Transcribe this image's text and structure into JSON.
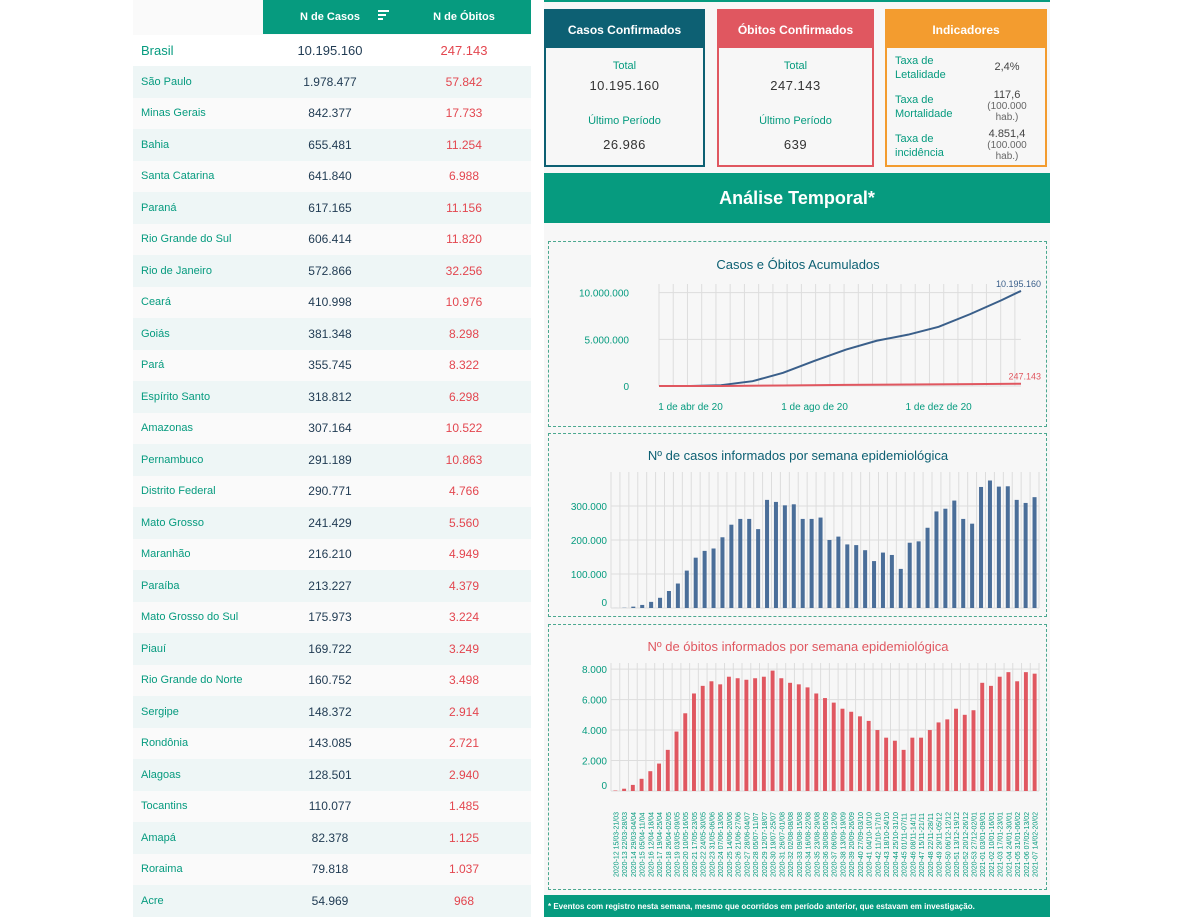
{
  "table": {
    "header_casos": "N de Casos",
    "header_obitos": "N de Óbitos",
    "total": {
      "uf": "Brasil",
      "casos": "10.195.160",
      "obitos": "247.143"
    },
    "rows": [
      {
        "uf": "São Paulo",
        "casos": "1.978.477",
        "obitos": "57.842"
      },
      {
        "uf": "Minas Gerais",
        "casos": "842.377",
        "obitos": "17.733"
      },
      {
        "uf": "Bahia",
        "casos": "655.481",
        "obitos": "11.254"
      },
      {
        "uf": "Santa Catarina",
        "casos": "641.840",
        "obitos": "6.988"
      },
      {
        "uf": "Paraná",
        "casos": "617.165",
        "obitos": "11.156"
      },
      {
        "uf": "Rio Grande do Sul",
        "casos": "606.414",
        "obitos": "11.820"
      },
      {
        "uf": "Rio de Janeiro",
        "casos": "572.866",
        "obitos": "32.256"
      },
      {
        "uf": "Ceará",
        "casos": "410.998",
        "obitos": "10.976"
      },
      {
        "uf": "Goiás",
        "casos": "381.348",
        "obitos": "8.298"
      },
      {
        "uf": "Pará",
        "casos": "355.745",
        "obitos": "8.322"
      },
      {
        "uf": "Espírito Santo",
        "casos": "318.812",
        "obitos": "6.298"
      },
      {
        "uf": "Amazonas",
        "casos": "307.164",
        "obitos": "10.522"
      },
      {
        "uf": "Pernambuco",
        "casos": "291.189",
        "obitos": "10.863"
      },
      {
        "uf": "Distrito Federal",
        "casos": "290.771",
        "obitos": "4.766"
      },
      {
        "uf": "Mato Grosso",
        "casos": "241.429",
        "obitos": "5.560"
      },
      {
        "uf": "Maranhão",
        "casos": "216.210",
        "obitos": "4.949"
      },
      {
        "uf": "Paraíba",
        "casos": "213.227",
        "obitos": "4.379"
      },
      {
        "uf": "Mato Grosso do Sul",
        "casos": "175.973",
        "obitos": "3.224"
      },
      {
        "uf": "Piauí",
        "casos": "169.722",
        "obitos": "3.249"
      },
      {
        "uf": "Rio Grande do Norte",
        "casos": "160.752",
        "obitos": "3.498"
      },
      {
        "uf": "Sergipe",
        "casos": "148.372",
        "obitos": "2.914"
      },
      {
        "uf": "Rondônia",
        "casos": "143.085",
        "obitos": "2.721"
      },
      {
        "uf": "Alagoas",
        "casos": "128.501",
        "obitos": "2.940"
      },
      {
        "uf": "Tocantins",
        "casos": "110.077",
        "obitos": "1.485"
      },
      {
        "uf": "Amapá",
        "casos": "82.378",
        "obitos": "1.125"
      },
      {
        "uf": "Roraima",
        "casos": "79.818",
        "obitos": "1.037"
      },
      {
        "uf": "Acre",
        "casos": "54.969",
        "obitos": "968"
      }
    ]
  },
  "cards": {
    "casos": {
      "title": "Casos Confirmados",
      "total_label": "Total",
      "total": "10.195.160",
      "periodo_label": "Último Período",
      "periodo": "26.986"
    },
    "obitos": {
      "title": "Óbitos Confirmados",
      "total_label": "Total",
      "total": "247.143",
      "periodo_label": "Último Período",
      "periodo": "639"
    },
    "indicadores": {
      "title": "Indicadores",
      "letalidade_label": "Taxa de Letalidade",
      "letalidade": "2,4%",
      "mortalidade_label": "Taxa de Mortalidade",
      "mortalidade": "117,6",
      "mortalidade_sub": "(100.000 hab.)",
      "incidencia_label": "Taxa de incidência",
      "incidencia": "4.851,4",
      "incidencia_sub": "(100.000 hab.)"
    }
  },
  "analise_title": "Análise Temporal*",
  "footnote": "* Eventos com registro nesta semana, mesmo que ocorridos em período anterior, que estavam em investigação.",
  "colors": {
    "teal": "#069b7f",
    "navy": "#0d6073",
    "red": "#e05760",
    "orange": "#f39c2f",
    "case_bar": "#4a6e99",
    "death_bar": "#e05760"
  },
  "chart_data": [
    {
      "type": "line",
      "title": "Casos e Óbitos Acumulados",
      "x_ticks": [
        "1 de abr de 20",
        "1 de ago de 20",
        "1 de dez de 20"
      ],
      "y_ticks": [
        "10.000.000",
        "5.000.000",
        "0"
      ],
      "ylim": [
        0,
        10500000
      ],
      "series": [
        {
          "color": "#3a5f8a",
          "end_label": "10.195.160",
          "x": [
            "2020-03-01",
            "2020-04-01",
            "2020-05-01",
            "2020-06-01",
            "2020-07-01",
            "2020-08-01",
            "2020-09-01",
            "2020-10-01",
            "2020-11-01",
            "2020-12-01",
            "2021-01-01",
            "2021-02-01",
            "2021-02-20"
          ],
          "y": [
            0,
            6000,
            87000,
            515000,
            1410000,
            2700000,
            3900000,
            4850000,
            5500000,
            6340000,
            7700000,
            9200000,
            10195160
          ]
        },
        {
          "color": "#e05760",
          "end_label": "247.143",
          "x": [
            "2020-03-01",
            "2020-05-01",
            "2020-07-01",
            "2020-09-01",
            "2020-11-01",
            "2021-01-01",
            "2021-02-20"
          ],
          "y": [
            0,
            6000,
            59000,
            121000,
            159000,
            195000,
            247143
          ]
        }
      ]
    },
    {
      "type": "bar",
      "title": "Nº de casos informados por semana epidemiológica",
      "y_ticks": [
        "300.000",
        "200.000",
        "100.000",
        "0"
      ],
      "ylim": [
        0,
        400000
      ],
      "values": [
        100,
        700,
        4000,
        9000,
        18000,
        30000,
        50000,
        72000,
        110000,
        148000,
        168000,
        175000,
        208000,
        245000,
        262000,
        262000,
        232000,
        318000,
        312000,
        302000,
        305000,
        262000,
        262000,
        266000,
        200000,
        210000,
        187000,
        185000,
        170000,
        138000,
        163000,
        156000,
        115000,
        192000,
        196000,
        236000,
        284000,
        292000,
        316000,
        262000,
        248000,
        356000,
        375000,
        357000,
        358000,
        318000,
        309000,
        326000
      ]
    },
    {
      "type": "bar",
      "title": "Nº de óbitos informados por semana epidemiológica",
      "y_ticks": [
        "8.000",
        "6.000",
        "4.000",
        "2.000",
        "0"
      ],
      "ylim": [
        0,
        8400
      ],
      "x": [
        "2020-12 15/03-21/03",
        "2020-13 22/03-28/03",
        "2020-14 29/03-04/04",
        "2020-15 05/04-11/04",
        "2020-16 12/04-18/04",
        "2020-17 19/04-25/04",
        "2020-18 26/04-02/05",
        "2020-19 03/05-09/05",
        "2020-20 10/05-16/05",
        "2020-21 17/05-23/05",
        "2020-22 24/05-30/05",
        "2020-23 31/05-06/06",
        "2020-24 07/06-13/06",
        "2020-25 14/06-20/06",
        "2020-26 21/06-27/06",
        "2020-27 28/06-04/07",
        "2020-28 05/07-11/07",
        "2020-29 12/07-18/07",
        "2020-30 19/07-25/07",
        "2020-31 26/07-01/08",
        "2020-32 02/08-08/08",
        "2020-33 09/08-15/08",
        "2020-34 16/08-22/08",
        "2020-35 23/08-29/08",
        "2020-36 30/08-05/09",
        "2020-37 06/09-12/09",
        "2020-38 13/09-19/09",
        "2020-39 20/09-26/09",
        "2020-40 27/09-03/10",
        "2020-41 04/10-10/10",
        "2020-42 11/10-17/10",
        "2020-43 18/10-24/10",
        "2020-44 25/10-31/10",
        "2020-45 01/11-07/11",
        "2020-46 08/11-14/11",
        "2020-47 15/11-21/11",
        "2020-48 22/11-28/11",
        "2020-49 29/11-05/12",
        "2020-50 06/12-12/12",
        "2020-51 13/12-19/12",
        "2020-52 20/12-26/12",
        "2020-53 27/12-02/01",
        "2021-01 03/01-09/01",
        "2021-02 10/01-16/01",
        "2021-03 17/01-23/01",
        "2021-04 24/01-30/01",
        "2021-05 31/01-06/02",
        "2021-06 07/02-13/02",
        "2021-07 14/02-20/02"
      ],
      "values": [
        30,
        150,
        400,
        800,
        1300,
        1800,
        2700,
        3900,
        5100,
        6400,
        6900,
        7200,
        7000,
        7500,
        7400,
        7300,
        7400,
        7500,
        7900,
        7400,
        7100,
        7000,
        6800,
        6400,
        6100,
        5800,
        5400,
        5200,
        4900,
        4600,
        4000,
        3500,
        3300,
        2700,
        3500,
        3500,
        4000,
        4500,
        4700,
        5400,
        5000,
        5300,
        7100,
        6900,
        7500,
        7800,
        7200,
        7800,
        7700
      ]
    }
  ]
}
